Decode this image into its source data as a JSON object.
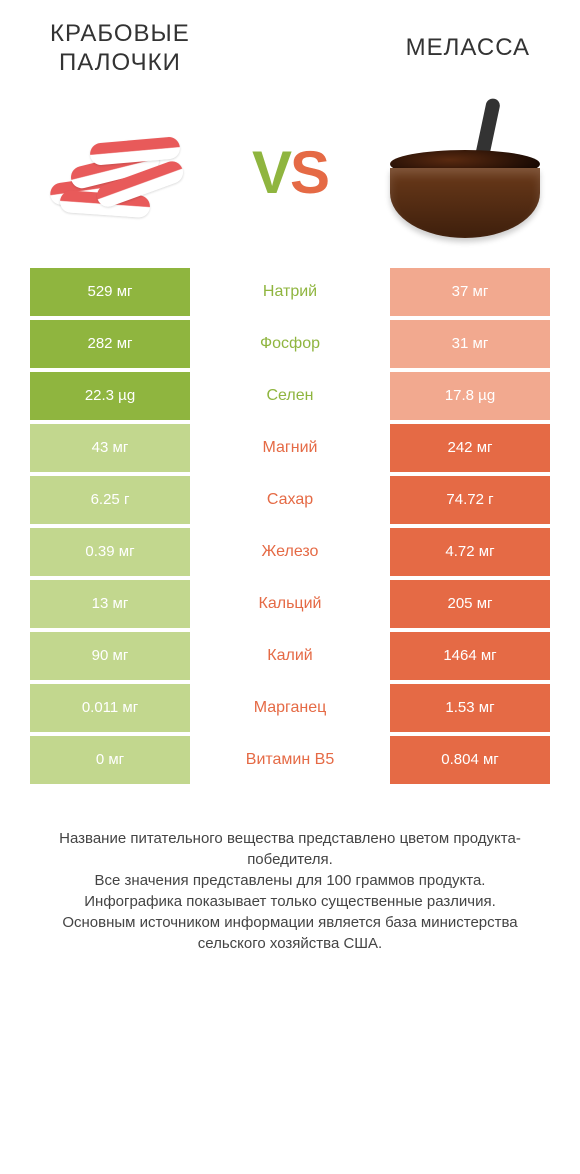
{
  "header": {
    "left_title": "КРАБОВЫЕ\nПАЛОЧКИ",
    "right_title": "МЕЛАССА",
    "vs_v": "V",
    "vs_s": "S"
  },
  "colors": {
    "left_win": "#8fb53f",
    "left_lose": "#c2d78e",
    "right_win": "#e56a45",
    "right_lose": "#f2a98f"
  },
  "rows": [
    {
      "label": "Натрий",
      "left": "529 мг",
      "right": "37 мг",
      "winner": "left"
    },
    {
      "label": "Фосфор",
      "left": "282 мг",
      "right": "31 мг",
      "winner": "left"
    },
    {
      "label": "Селен",
      "left": "22.3 µg",
      "right": "17.8 µg",
      "winner": "left"
    },
    {
      "label": "Магний",
      "left": "43 мг",
      "right": "242 мг",
      "winner": "right"
    },
    {
      "label": "Сахар",
      "left": "6.25 г",
      "right": "74.72 г",
      "winner": "right"
    },
    {
      "label": "Железо",
      "left": "0.39 мг",
      "right": "4.72 мг",
      "winner": "right"
    },
    {
      "label": "Кальций",
      "left": "13 мг",
      "right": "205 мг",
      "winner": "right"
    },
    {
      "label": "Калий",
      "left": "90 мг",
      "right": "1464 мг",
      "winner": "right"
    },
    {
      "label": "Марганец",
      "left": "0.011 мг",
      "right": "1.53 мг",
      "winner": "right"
    },
    {
      "label": "Витамин B5",
      "left": "0 мг",
      "right": "0.804 мг",
      "winner": "right"
    }
  ],
  "footer": {
    "l1": "Название питательного вещества представлено цветом продукта-победителя.",
    "l2": "Все значения представлены для 100 граммов продукта.",
    "l3": "Инфографика показывает только существенные различия.",
    "l4": "Основным источником информации является база министерства сельского хозяйства США."
  }
}
